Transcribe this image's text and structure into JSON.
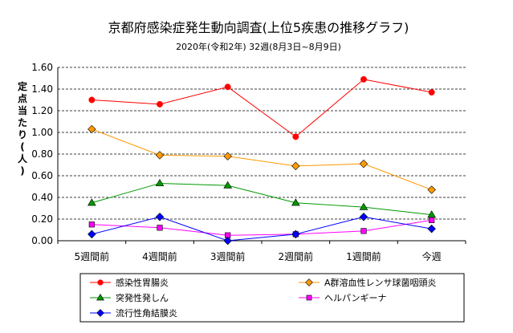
{
  "chart_data": {
    "type": "line",
    "title": "京都府感染症発生動向調査(上位5疾患の推移グラフ)",
    "subtitle": "2020年(令和2年)  32週(8月3日~8月9日)",
    "ylabel": "定点当たり(人)",
    "xlabel": "",
    "categories": [
      "5週間前",
      "4週間前",
      "3週間前",
      "2週間前",
      "1週間前",
      "今週"
    ],
    "yticks": [
      "0.00",
      "0.20",
      "0.40",
      "0.60",
      "0.80",
      "1.00",
      "1.20",
      "1.40",
      "1.60"
    ],
    "ylim": [
      0,
      1.6
    ],
    "grid": true,
    "legend_position": "bottom",
    "series": [
      {
        "name": "感染性胃腸炎",
        "values": [
          1.3,
          1.26,
          1.42,
          0.96,
          1.49,
          1.37
        ],
        "color": "#ff0000",
        "marker": "circle"
      },
      {
        "name": "A群溶血性レンサ球菌咽頭炎",
        "values": [
          1.03,
          0.79,
          0.78,
          0.69,
          0.71,
          0.47
        ],
        "color": "#ff9900",
        "marker": "diamond"
      },
      {
        "name": "突発性発しん",
        "values": [
          0.35,
          0.53,
          0.51,
          0.35,
          0.31,
          0.24
        ],
        "color": "#009900",
        "marker": "triangle"
      },
      {
        "name": "ヘルパンギーナ",
        "values": [
          0.15,
          0.12,
          0.05,
          0.06,
          0.09,
          0.19
        ],
        "color": "#ff00ff",
        "marker": "square"
      },
      {
        "name": "流行性角結膜炎",
        "values": [
          0.06,
          0.22,
          0.0,
          0.06,
          0.22,
          0.11
        ],
        "color": "#0000ff",
        "marker": "diamond"
      }
    ]
  }
}
